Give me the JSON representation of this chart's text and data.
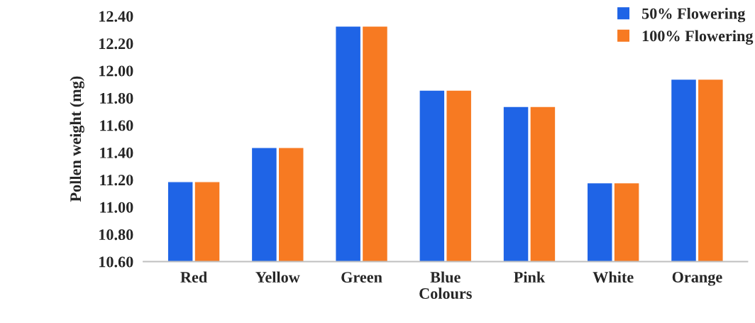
{
  "chart_data": {
    "type": "bar",
    "xlabel": "Colours",
    "ylabel": "Pollen weight (mg)",
    "categories": [
      "Red",
      "Yellow",
      "Green",
      "Blue",
      "Pink",
      "White",
      "Orange"
    ],
    "series": [
      {
        "name": "50% Flowering",
        "color": "#1f64e6",
        "values": [
          11.18,
          11.43,
          12.32,
          11.85,
          11.73,
          11.17,
          11.93
        ]
      },
      {
        "name": "100% Flowering",
        "color": "#f77a22",
        "values": [
          11.18,
          11.43,
          12.32,
          11.85,
          11.73,
          11.17,
          11.93
        ]
      }
    ],
    "ylim": [
      10.6,
      12.4
    ],
    "yticks": [
      {
        "value": 10.6,
        "label": "10.60"
      },
      {
        "value": 10.8,
        "label": "10.80"
      },
      {
        "value": 11.0,
        "label": "11.00"
      },
      {
        "value": 11.2,
        "label": "11.20"
      },
      {
        "value": 11.4,
        "label": "11.40"
      },
      {
        "value": 11.6,
        "label": "11.60"
      },
      {
        "value": 11.8,
        "label": "11.80"
      },
      {
        "value": 12.0,
        "label": "12.00"
      },
      {
        "value": 12.2,
        "label": "12.20"
      },
      {
        "value": 12.4,
        "label": "12.40"
      }
    ],
    "grid": false,
    "legend": "top right"
  }
}
